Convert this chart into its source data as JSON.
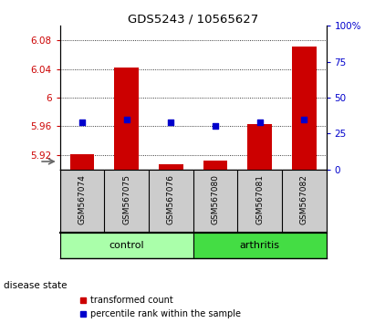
{
  "title": "GDS5243 / 10565627",
  "samples": [
    "GSM567074",
    "GSM567075",
    "GSM567076",
    "GSM567080",
    "GSM567081",
    "GSM567082"
  ],
  "transformed_count": [
    5.921,
    6.042,
    5.907,
    5.912,
    5.963,
    6.071
  ],
  "percentile_rank": [
    33,
    35,
    33,
    30,
    33,
    35
  ],
  "ylim_left": [
    5.9,
    6.1
  ],
  "ylim_right": [
    0,
    100
  ],
  "yticks_left": [
    5.92,
    5.96,
    6.0,
    6.04,
    6.08
  ],
  "yticks_right": [
    0,
    25,
    50,
    75,
    100
  ],
  "ytick_labels_left": [
    "5.92",
    "5.96",
    "6",
    "6.04",
    "6.08"
  ],
  "ytick_labels_right": [
    "0",
    "25",
    "50",
    "75",
    "100%"
  ],
  "bar_color": "#CC0000",
  "dot_color": "#0000CC",
  "control_color": "#AAFFAA",
  "arthritis_color": "#44DD44",
  "label_bg_color": "#CCCCCC",
  "left_tick_color": "#CC0000",
  "right_tick_color": "#0000CC",
  "bar_bottom": 5.9,
  "legend_labels": [
    "transformed count",
    "percentile rank within the sample"
  ],
  "group_label": "disease state",
  "n_control": 3,
  "n_arthritis": 3
}
